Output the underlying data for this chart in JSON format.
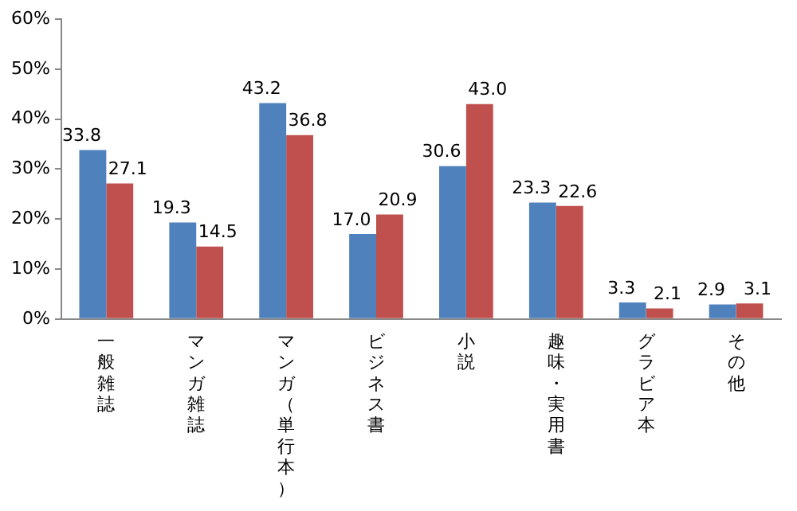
{
  "chart_data": {
    "type": "bar",
    "categories": [
      "一般雑誌",
      "マンガ雑誌",
      "マンガ（単行本）",
      "ビジネス書",
      "小説",
      "趣味・実用書",
      "グラビア本",
      "その他"
    ],
    "series": [
      {
        "color": "#4f81bd",
        "values": [
          33.8,
          19.3,
          43.2,
          17.0,
          30.6,
          23.3,
          3.3,
          2.9
        ],
        "value_labels": [
          "33.8",
          "19.3",
          "43.2",
          "17.0",
          "30.6",
          "23.3",
          "3.3",
          "2.9"
        ]
      },
      {
        "color": "#c0504d",
        "values": [
          27.1,
          14.5,
          36.8,
          20.9,
          43.0,
          22.6,
          2.1,
          3.1
        ],
        "value_labels": [
          "27.1",
          "14.5",
          "36.8",
          "20.9",
          "43.0",
          "22.6",
          "2.1",
          "3.1"
        ]
      }
    ],
    "ylim": [
      0,
      60
    ],
    "yticks": [
      {
        "value": 0,
        "label": "0%"
      },
      {
        "value": 10,
        "label": "10%"
      },
      {
        "value": 20,
        "label": "20%"
      },
      {
        "value": 30,
        "label": "30%"
      },
      {
        "value": 40,
        "label": "40%"
      },
      {
        "value": 50,
        "label": "50%"
      },
      {
        "value": 60,
        "label": "60%"
      }
    ],
    "grid": false,
    "legend": false
  }
}
